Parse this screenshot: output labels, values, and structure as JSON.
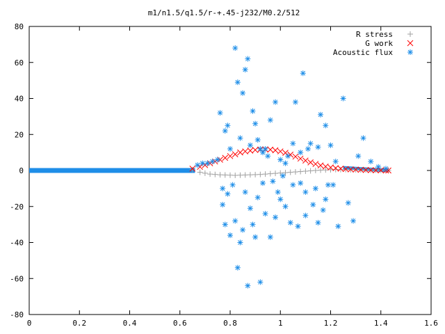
{
  "chart_data": {
    "type": "scatter",
    "title": "m1/n1.5/q1.5/r-+.45-j232/M0.2/512",
    "xlabel": "",
    "ylabel": "",
    "xlim": [
      0,
      1.6
    ],
    "ylim": [
      -80,
      80
    ],
    "xticks": [
      "0",
      "0.2",
      "0.4",
      "0.6",
      "0.8",
      "1",
      "1.2",
      "1.4",
      "1.6"
    ],
    "yticks": [
      "80",
      "60",
      "40",
      "20",
      "0",
      "-20",
      "-40",
      "-60",
      "-80"
    ],
    "legend_position": "top-right",
    "grid": false,
    "series": [
      {
        "name": "R stress",
        "marker": "plus",
        "color": "#a0a0a0",
        "x": [
          0.65,
          0.68,
          0.7,
          0.72,
          0.74,
          0.76,
          0.78,
          0.8,
          0.82,
          0.84,
          0.86,
          0.88,
          0.9,
          0.92,
          0.94,
          0.96,
          0.98,
          1.0,
          1.02,
          1.04,
          1.06,
          1.08,
          1.1,
          1.12,
          1.14,
          1.16,
          1.18,
          1.2,
          1.22,
          1.24,
          1.26,
          1.28,
          1.3,
          1.32,
          1.34,
          1.36,
          1.38,
          1.4,
          1.42,
          1.43
        ],
        "y": [
          0.5,
          -1.0,
          -1.5,
          -2.0,
          -2.2,
          -2.4,
          -2.5,
          -2.6,
          -2.7,
          -2.6,
          -2.5,
          -2.4,
          -2.3,
          -2.2,
          -2.0,
          -1.8,
          -1.6,
          -1.4,
          -1.2,
          -1.0,
          -0.8,
          -0.6,
          -0.4,
          -0.2,
          0.0,
          0.2,
          0.3,
          0.4,
          0.5,
          0.5,
          0.5,
          0.4,
          0.4,
          0.3,
          0.3,
          0.2,
          0.2,
          0.1,
          0.1,
          0.0
        ]
      },
      {
        "name": "G work",
        "marker": "cross",
        "color": "#ff0000",
        "x": [
          0.65,
          0.68,
          0.7,
          0.72,
          0.74,
          0.76,
          0.78,
          0.8,
          0.82,
          0.84,
          0.86,
          0.88,
          0.9,
          0.92,
          0.94,
          0.96,
          0.98,
          1.0,
          1.02,
          1.04,
          1.06,
          1.08,
          1.1,
          1.12,
          1.14,
          1.16,
          1.18,
          1.2,
          1.22,
          1.24,
          1.26,
          1.28,
          1.3,
          1.32,
          1.34,
          1.36,
          1.38,
          1.4,
          1.42,
          1.43
        ],
        "y": [
          1.0,
          2.0,
          3.0,
          4.0,
          5.0,
          6.0,
          7.0,
          8.0,
          9.0,
          10.0,
          10.6,
          11.0,
          11.4,
          11.6,
          11.7,
          11.6,
          11.2,
          10.6,
          9.8,
          8.8,
          7.7,
          6.6,
          5.5,
          4.5,
          3.6,
          2.8,
          2.2,
          1.7,
          1.3,
          1.0,
          0.8,
          0.6,
          0.5,
          0.4,
          0.3,
          0.2,
          0.1,
          0.1,
          0.0,
          0.0
        ]
      },
      {
        "name": "Acoustic flux",
        "marker": "star",
        "color": "#1e8ee8",
        "x": [
          0.67,
          0.69,
          0.71,
          0.73,
          0.75,
          0.76,
          0.77,
          0.77,
          0.78,
          0.78,
          0.79,
          0.79,
          0.8,
          0.8,
          0.81,
          0.82,
          0.82,
          0.83,
          0.83,
          0.84,
          0.84,
          0.85,
          0.85,
          0.86,
          0.86,
          0.87,
          0.87,
          0.88,
          0.88,
          0.89,
          0.89,
          0.9,
          0.9,
          0.91,
          0.91,
          0.92,
          0.92,
          0.93,
          0.93,
          0.94,
          0.94,
          0.95,
          0.96,
          0.96,
          0.97,
          0.98,
          0.98,
          0.99,
          1.0,
          1.0,
          1.01,
          1.02,
          1.02,
          1.03,
          1.04,
          1.05,
          1.05,
          1.06,
          1.07,
          1.08,
          1.08,
          1.09,
          1.1,
          1.1,
          1.11,
          1.12,
          1.13,
          1.14,
          1.15,
          1.15,
          1.16,
          1.17,
          1.18,
          1.18,
          1.19,
          1.2,
          1.21,
          1.22,
          1.23,
          1.25,
          1.27,
          1.29,
          1.31,
          1.33,
          1.36,
          1.39,
          1.42
        ],
        "y": [
          3,
          4,
          4,
          5,
          6,
          32,
          -10,
          -19,
          22,
          -30,
          25,
          -13,
          12,
          -36,
          -8,
          68,
          -28,
          49,
          -54,
          -40,
          18,
          43,
          -33,
          -12,
          56,
          -64,
          62,
          14,
          -21,
          33,
          -30,
          26,
          -37,
          17,
          -15,
          -62,
          12,
          -7,
          10,
          -24,
          12,
          8,
          -37,
          28,
          -6,
          38,
          -26,
          -12,
          6,
          -16,
          -3,
          4,
          -20,
          8,
          -29,
          15,
          -8,
          38,
          -31,
          -7,
          10,
          54,
          -12,
          -25,
          12,
          15,
          -19,
          -10,
          -29,
          13,
          31,
          -22,
          -16,
          25,
          -8,
          14,
          -8,
          5,
          -31,
          40,
          -18,
          -28,
          8,
          18,
          5,
          2,
          1
        ]
      }
    ]
  }
}
